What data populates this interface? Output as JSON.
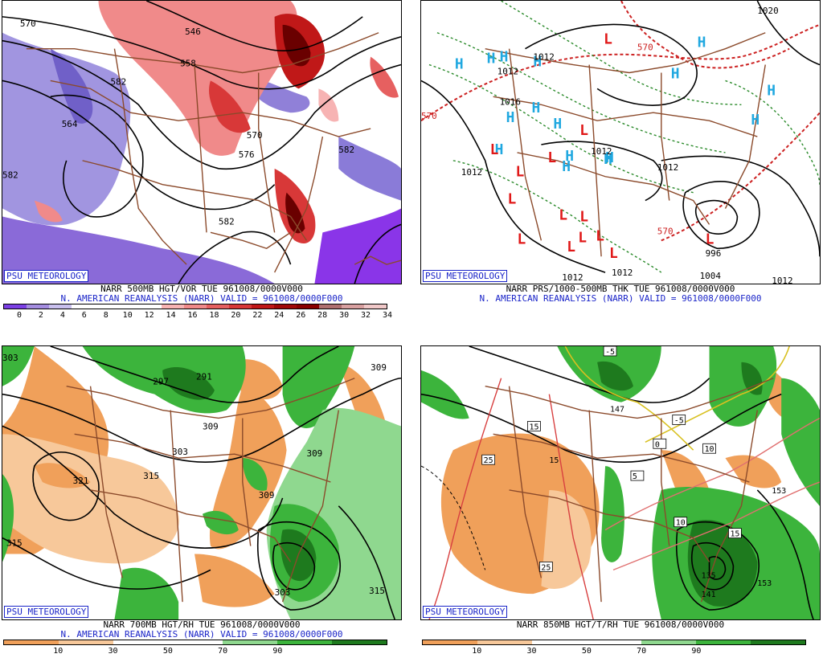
{
  "badge": "PSU METEOROLOGY",
  "panels": [
    {
      "title1": "NARR 500MB HGT/VOR TUE 961008/0000V000",
      "title2": "N. AMERICAN REANALYSIS (NARR) VALID = 961008/0000F000",
      "colorbar": {
        "colors": [
          "#7b3fe4",
          "#a48de0",
          "#c9c0ee",
          "#ffffff",
          "#ffffff",
          "#ffffff",
          "#ffffff",
          "#f7b3b3",
          "#f08a8a",
          "#e66060",
          "#d83838",
          "#c01818",
          "#a00808",
          "#8a0000",
          "#b07070",
          "#d8a0a0",
          "#f0c8c8"
        ],
        "ticks": [
          "0",
          "2",
          "4",
          "6",
          "8",
          "10",
          "12",
          "14",
          "16",
          "18",
          "20",
          "22",
          "24",
          "26",
          "28",
          "30",
          "32",
          "34"
        ]
      },
      "contour_labels": [
        "546",
        "558",
        "570",
        "582",
        "582",
        "564",
        "570",
        "576",
        "582",
        "582"
      ]
    },
    {
      "title1": "NARR PRS/1000-500MB THK TUE 961008/0000V000",
      "title2": "N. AMERICAN REANALYSIS (NARR) VALID = 961008/0000F000",
      "highs": [
        "H",
        "H",
        "H",
        "H",
        "H",
        "H",
        "H",
        "H",
        "H",
        "H",
        "H",
        "H",
        "H",
        "H",
        "H",
        "H"
      ],
      "lows": [
        "L",
        "L",
        "L",
        "L",
        "L",
        "L",
        "L",
        "L",
        "L",
        "L",
        "L",
        "L",
        "L",
        "L"
      ],
      "contour_labels": [
        "1012",
        "1012",
        "1016",
        "1012",
        "1012",
        "1012",
        "1012",
        "1012",
        "996",
        "1004",
        "1012",
        "1020",
        "570",
        "570",
        "570"
      ]
    },
    {
      "title1": "NARR 700MB HGT/RH TUE 961008/0000V000",
      "title2": "N. AMERICAN REANALYSIS (NARR) VALID = 961008/0000F000",
      "colorbar": {
        "colors": [
          "#f0a05a",
          "#f7c89a",
          "#ffffff",
          "#ffffff",
          "#8fd88f",
          "#3cb43c",
          "#1e7a1e"
        ],
        "ticks": [
          "10",
          "30",
          "50",
          "70",
          "90"
        ]
      },
      "contour_labels": [
        "303",
        "297",
        "291",
        "309",
        "303",
        "309",
        "315",
        "321",
        "315",
        "309",
        "303",
        "315",
        "309"
      ]
    },
    {
      "title1": "NARR 850MB HGT/T/RH TUE 961008/0000V000",
      "title2": "",
      "colorbar": {
        "colors": [
          "#f0a05a",
          "#f7c89a",
          "#ffffff",
          "#ffffff",
          "#8fd88f",
          "#3cb43c",
          "#1e7a1e"
        ],
        "ticks": [
          "10",
          "30",
          "50",
          "70",
          "90"
        ]
      },
      "contour_labels": [
        "-5",
        "-5",
        "147",
        "15",
        "15",
        "25",
        "25",
        "153",
        "0",
        "5",
        "10",
        "10",
        "15",
        "135",
        "141",
        "153"
      ]
    }
  ]
}
